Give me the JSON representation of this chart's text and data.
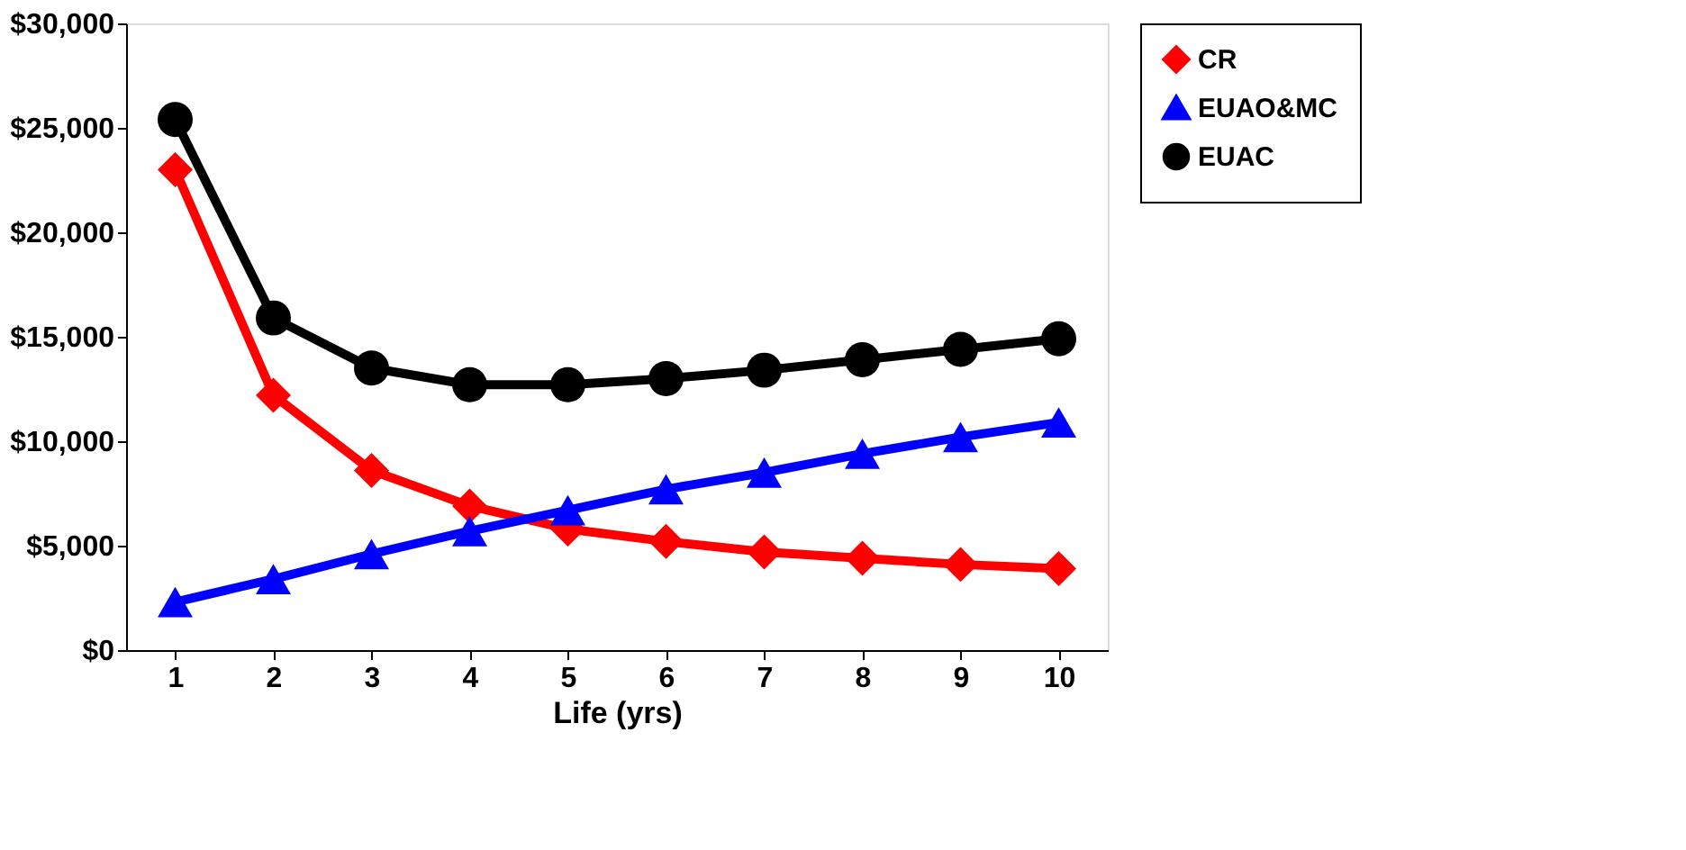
{
  "chart_data": {
    "type": "line",
    "xlabel": "Life (yrs)",
    "categories": [
      "1",
      "2",
      "3",
      "4",
      "5",
      "6",
      "7",
      "8",
      "9",
      "10"
    ],
    "series": [
      {
        "name": "CR",
        "color": "#ff0000",
        "marker": "diamond",
        "values": [
          23000,
          12200,
          8600,
          6900,
          5800,
          5200,
          4700,
          4400,
          4100,
          3900
        ]
      },
      {
        "name": "EUAO&MC",
        "color": "#0000ff",
        "marker": "triangle",
        "values": [
          2300,
          3400,
          4600,
          5700,
          6700,
          7700,
          8500,
          9400,
          10200,
          10900
        ]
      },
      {
        "name": "EUAC",
        "color": "#000000",
        "marker": "circle",
        "values": [
          25400,
          15900,
          13500,
          12700,
          12700,
          13000,
          13400,
          13900,
          14400,
          14900
        ]
      }
    ],
    "ylim": [
      0,
      30000
    ],
    "yticks": [
      {
        "value": 0,
        "label": "$0"
      },
      {
        "value": 5000,
        "label": "$5,000"
      },
      {
        "value": 10000,
        "label": "$10,000"
      },
      {
        "value": 15000,
        "label": "$15,000"
      },
      {
        "value": 20000,
        "label": "$20,000"
      },
      {
        "value": 25000,
        "label": "$25,000"
      },
      {
        "value": 30000,
        "label": "$30,000"
      }
    ],
    "grid": false,
    "legend": "right",
    "line_style": "solid"
  }
}
